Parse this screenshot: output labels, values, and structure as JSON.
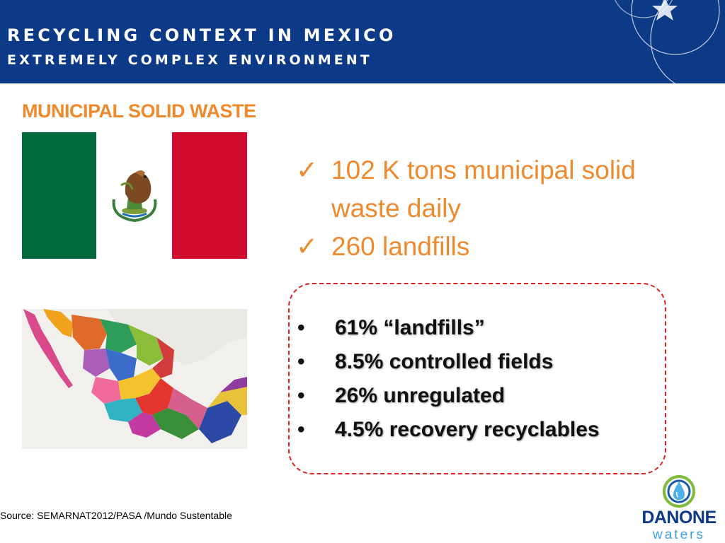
{
  "header": {
    "title": "RECYCLING CONTEXT IN MEXICO",
    "subtitle": "EXTREMELY COMPLEX ENVIRONMENT"
  },
  "section_title": "MUNICIPAL SOLID WASTE",
  "check_items": [
    {
      "mark": "✓",
      "text": "102 K tons municipal solid waste daily"
    },
    {
      "mark": "✓",
      "text": "260 landfills"
    }
  ],
  "bullets": [
    {
      "mark": "•",
      "text": "61% “landfills”"
    },
    {
      "mark": "•",
      "text": "8.5% controlled fields"
    },
    {
      "mark": "•",
      "text": "26%  unregulated"
    },
    {
      "mark": "•",
      "text": "4.5% recovery recyclables"
    }
  ],
  "source": "Source: SEMARNAT2012/PASA /Mundo Sustentable",
  "logo": {
    "brand": "DANONE",
    "sub": "waters"
  },
  "colors": {
    "header_blue": "#0d3a87",
    "orange": "#ee8a2d",
    "dashed_red": "#e11f1f",
    "flag_green": "#00693e",
    "flag_red": "#cf0a2c"
  }
}
